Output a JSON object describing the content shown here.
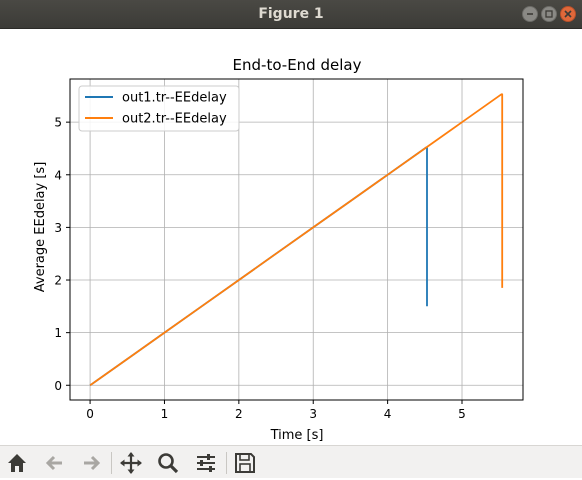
{
  "window": {
    "title": "Figure 1"
  },
  "toolbar": {
    "buttons": [
      {
        "name": "home-icon"
      },
      {
        "name": "back-icon"
      },
      {
        "name": "forward-icon"
      },
      {
        "name": "pan-icon"
      },
      {
        "name": "zoom-icon"
      },
      {
        "name": "configure-subplots-icon"
      },
      {
        "name": "save-icon"
      }
    ]
  },
  "chart_data": {
    "type": "line",
    "title": "End-to-End delay",
    "xlabel": "Time [s]",
    "ylabel": "Average EEdelay [s]",
    "xlim": [
      -0.27,
      5.82
    ],
    "ylim": [
      -0.28,
      5.82
    ],
    "xticks": [
      0,
      1,
      2,
      3,
      4,
      5
    ],
    "yticks": [
      0,
      1,
      2,
      3,
      4,
      5
    ],
    "grid": true,
    "legend_position": "top-left",
    "series": [
      {
        "name": "out1.tr--EEdelay",
        "color": "#1f77b4",
        "x": [
          0,
          0.5,
          1,
          1.5,
          2,
          2.5,
          3,
          3.5,
          4,
          4.52,
          4.53,
          4.53
        ],
        "y": [
          0,
          0.5,
          1,
          1.5,
          2,
          2.5,
          3,
          3.5,
          4,
          4.52,
          4.52,
          1.5
        ]
      },
      {
        "name": "out2.tr--EEdelay",
        "color": "#ff7f0e",
        "x": [
          0,
          0.5,
          1,
          1.5,
          2,
          2.5,
          3,
          3.5,
          4,
          4.5,
          5,
          5.53,
          5.54,
          5.54
        ],
        "y": [
          0,
          0.5,
          1,
          1.5,
          2,
          2.5,
          3,
          3.5,
          4,
          4.5,
          5,
          5.53,
          5.53,
          1.85
        ]
      }
    ]
  }
}
